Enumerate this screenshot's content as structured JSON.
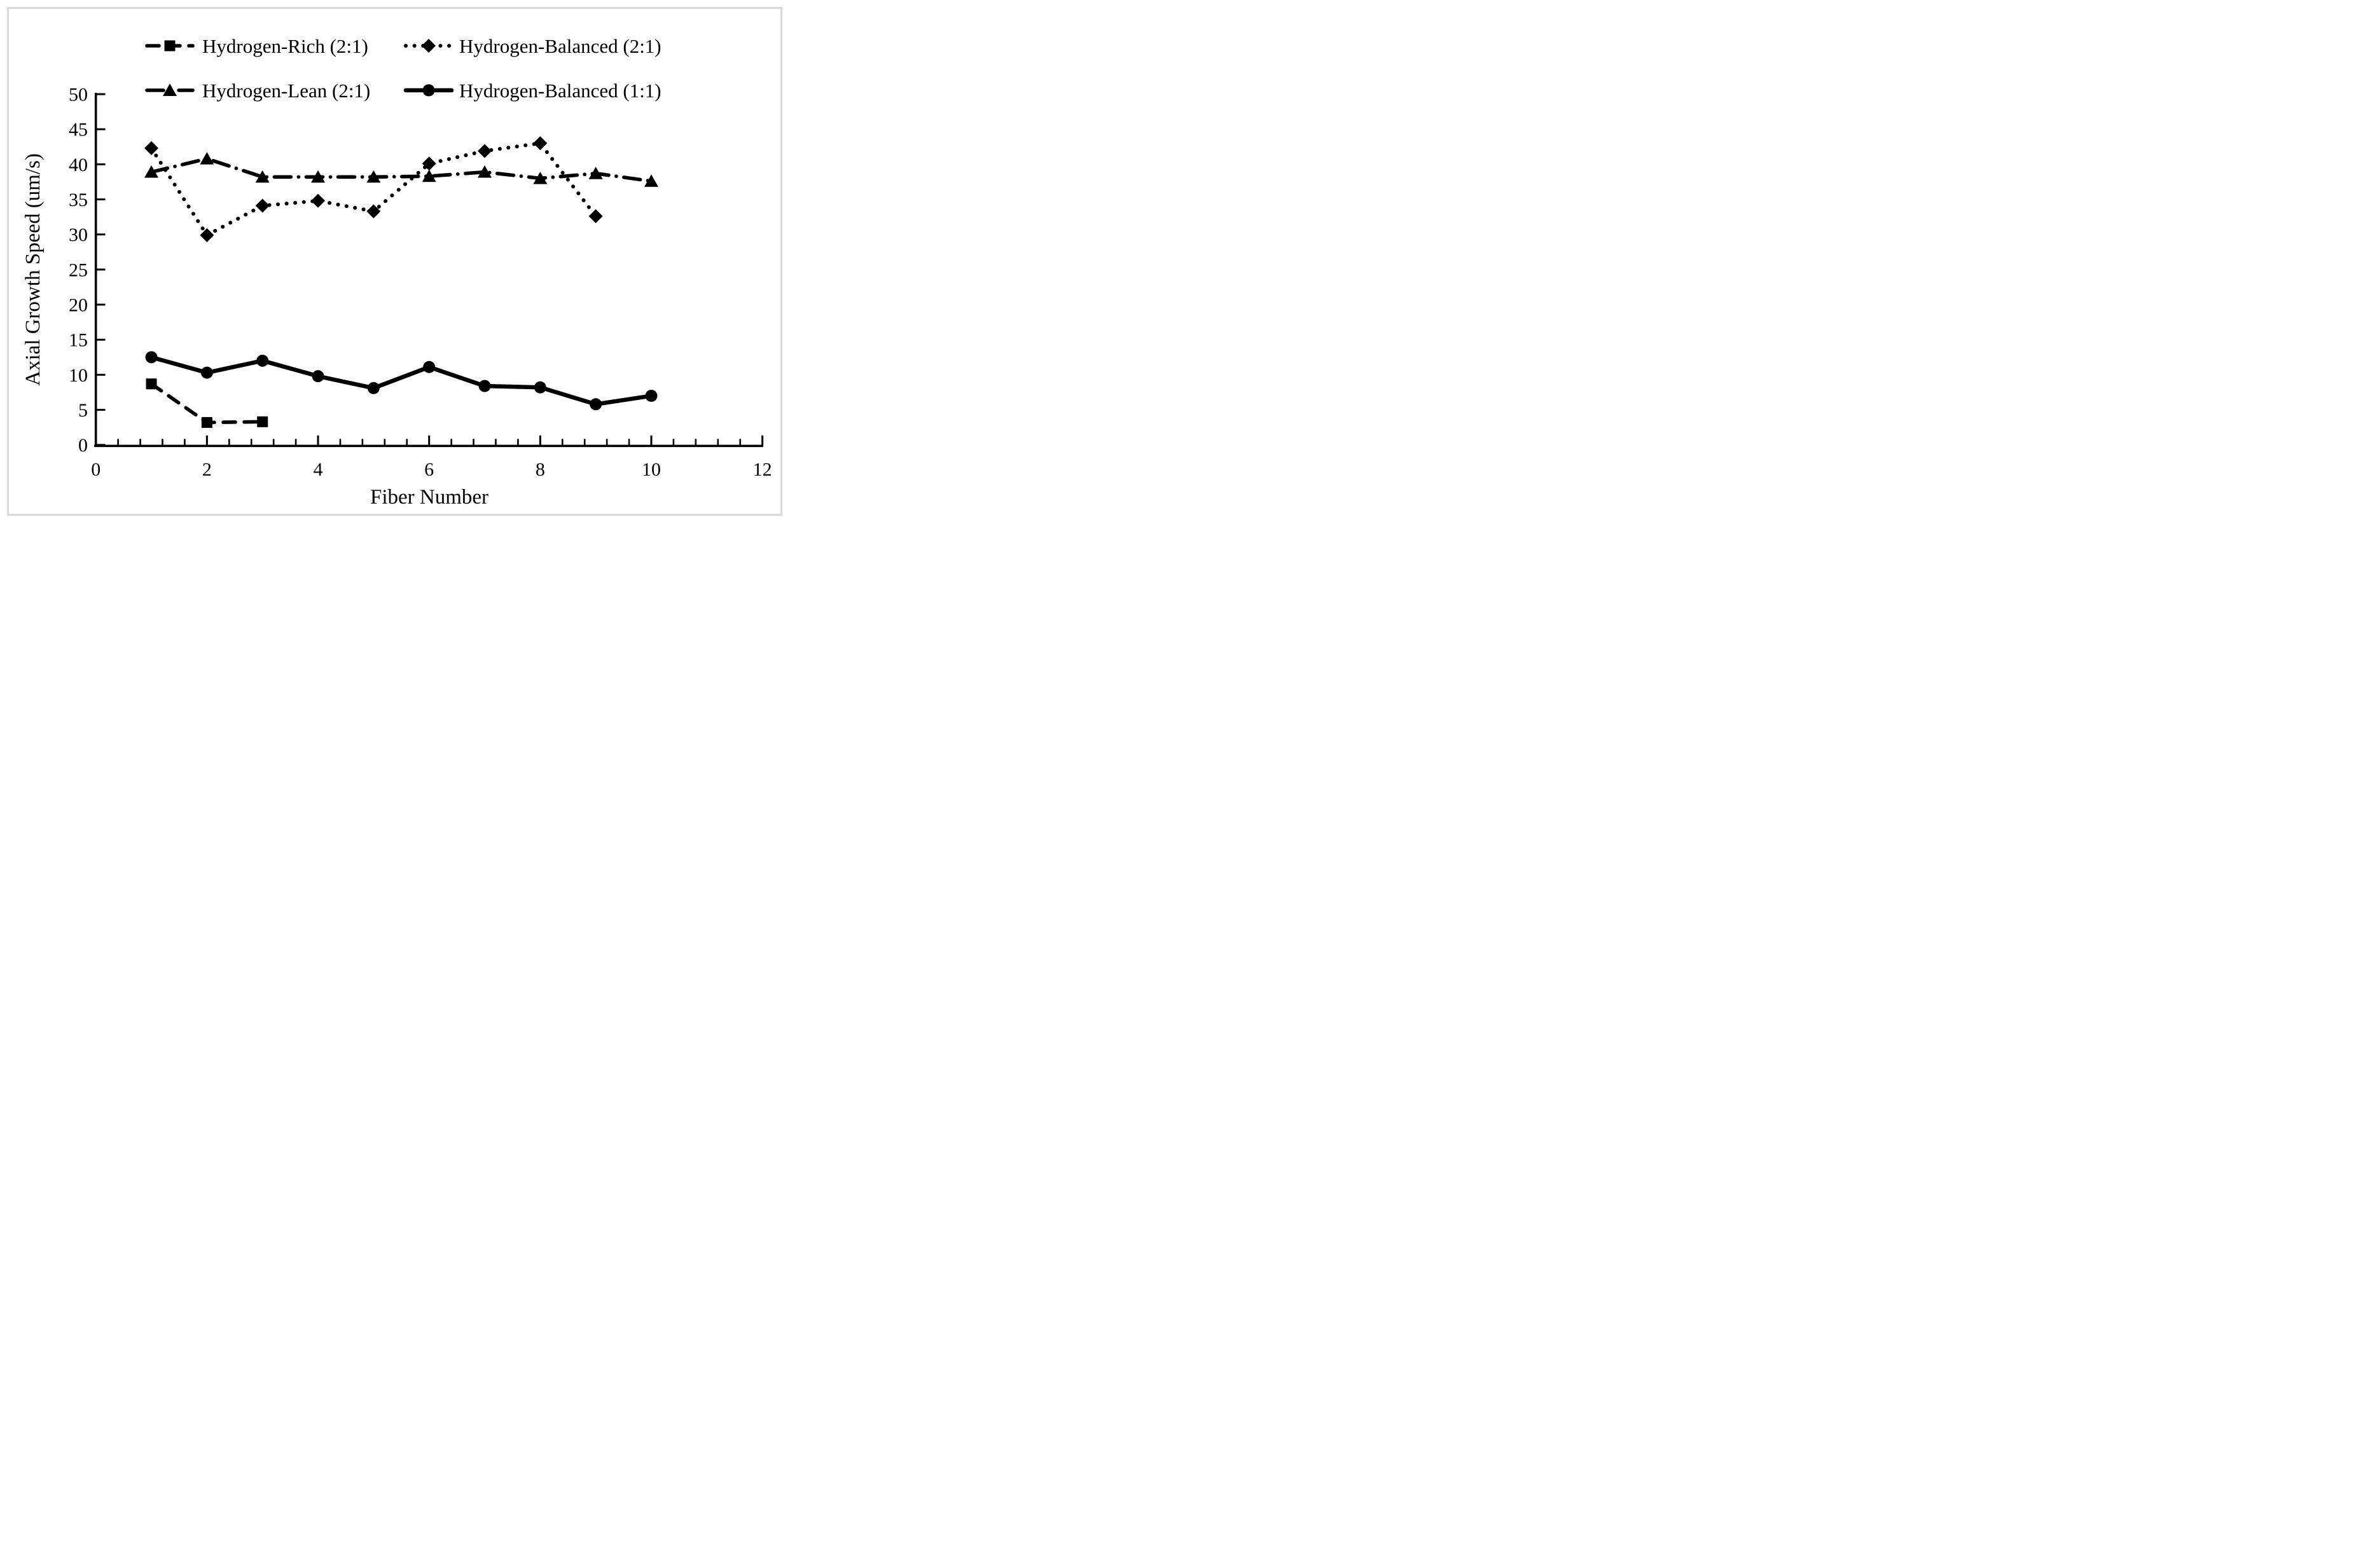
{
  "figure": {
    "background": "#ffffff",
    "border_color": "#d9d9d9",
    "ink_color": "#000000"
  },
  "chart_data": {
    "type": "line",
    "title": "",
    "xlabel": "Fiber Number",
    "ylabel": "Axial Growth Speed (um/s)",
    "xlim": [
      0,
      12
    ],
    "ylim": [
      0,
      50
    ],
    "x_major_ticks": [
      0,
      2,
      4,
      6,
      8,
      10,
      12
    ],
    "x_minor_tick_step": 0.4,
    "y_ticks": [
      0,
      5,
      10,
      15,
      20,
      25,
      30,
      35,
      40,
      45,
      50
    ],
    "grid": false,
    "legend_position": "top",
    "series": [
      {
        "name": "Hydrogen-Rich (2:1)",
        "marker": "square",
        "line_style": "dashed",
        "color": "#000000",
        "x": [
          1,
          2,
          3
        ],
        "values": [
          8.7,
          3.2,
          3.3
        ]
      },
      {
        "name": "Hydrogen-Balanced (2:1)",
        "marker": "diamond",
        "line_style": "dotted",
        "color": "#000000",
        "x": [
          1,
          2,
          3,
          4,
          5,
          6,
          7,
          8,
          9
        ],
        "values": [
          42.3,
          29.9,
          34.1,
          34.8,
          33.3,
          40.1,
          41.9,
          43.0,
          32.6
        ]
      },
      {
        "name": "Hydrogen-Lean (2:1)",
        "marker": "triangle",
        "line_style": "dashdot",
        "color": "#000000",
        "x": [
          1,
          2,
          3,
          4,
          5,
          6,
          7,
          8,
          9,
          10
        ],
        "values": [
          38.9,
          40.8,
          38.2,
          38.2,
          38.2,
          38.3,
          38.9,
          38.0,
          38.7,
          37.6
        ]
      },
      {
        "name": "Hydrogen-Balanced (1:1)",
        "marker": "circle",
        "line_style": "solid",
        "color": "#000000",
        "x": [
          1,
          2,
          3,
          4,
          5,
          6,
          7,
          8,
          9,
          10
        ],
        "values": [
          12.5,
          10.3,
          12.0,
          9.8,
          8.1,
          11.1,
          8.4,
          8.2,
          5.8,
          7.0
        ]
      }
    ]
  },
  "legend": {
    "layout": "two-rows-two-columns",
    "row1": [
      "Hydrogen-Rich (2:1)",
      "Hydrogen-Balanced (2:1)"
    ],
    "row2": [
      "Hydrogen-Lean (2:1)",
      "Hydrogen-Balanced (1:1)"
    ]
  }
}
